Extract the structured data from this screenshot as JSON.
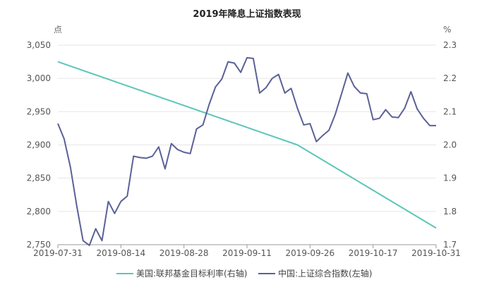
{
  "chart_data": {
    "type": "line",
    "title": "2019年降息上证指数表现",
    "left_axis": {
      "unit": "点",
      "ylim": [
        2750,
        3050
      ],
      "ticks": [
        "2,750",
        "2,800",
        "2,850",
        "2,900",
        "2,950",
        "3,000",
        "3,050"
      ],
      "tick_values": [
        2750,
        2800,
        2850,
        2900,
        2950,
        3000,
        3050
      ]
    },
    "right_axis": {
      "unit": "%",
      "ylim": [
        1.7,
        2.3
      ],
      "ticks": [
        "1.7",
        "1.8",
        "1.9",
        "2.0",
        "2.1",
        "2.2",
        "2.3"
      ],
      "tick_values": [
        1.7,
        1.8,
        1.9,
        2.0,
        2.1,
        2.2,
        2.3
      ]
    },
    "x_ticks": [
      "2019-07-31",
      "2019-08-14",
      "2019-08-28",
      "2019-09-11",
      "2019-09-26",
      "2019-10-17",
      "2019-10-31"
    ],
    "x_count": 66,
    "x_tick_index": [
      0,
      10,
      20,
      30,
      40,
      50,
      60
    ],
    "series": [
      {
        "name": "美国:联邦基金目标利率(右轴)",
        "axis": "right",
        "color": "#5cc6b8",
        "x": [
          0,
          38,
          60
        ],
        "values": [
          2.25,
          2.0,
          1.75
        ]
      },
      {
        "name": "中国:上证综合指数(左轴)",
        "axis": "left",
        "color": "#5b6196",
        "x": [
          0,
          1,
          2,
          3,
          4,
          5,
          6,
          7,
          8,
          9,
          10,
          11,
          12,
          13,
          14,
          15,
          16,
          17,
          18,
          19,
          20,
          21,
          22,
          23,
          24,
          25,
          26,
          27,
          28,
          29,
          30,
          31,
          32,
          33,
          34,
          35,
          36,
          37,
          38,
          39,
          40,
          41,
          42,
          43,
          44,
          45,
          46,
          47,
          48,
          49,
          50,
          51,
          52,
          53,
          54,
          55,
          56,
          57,
          58,
          59,
          60
        ],
        "values": [
          2932,
          2909,
          2866,
          2808,
          2756,
          2749,
          2774,
          2756,
          2815,
          2797,
          2815,
          2823,
          2883,
          2881,
          2880,
          2883,
          2897,
          2864,
          2902,
          2893,
          2889,
          2887,
          2924,
          2930,
          2961,
          2987,
          2999,
          3025,
          3023,
          3009,
          3031,
          3030,
          2978,
          2986,
          3000,
          3006,
          2978,
          2985,
          2955,
          2930,
          2932,
          2905,
          2914,
          2922,
          2946,
          2977,
          3008,
          2988,
          2978,
          2977,
          2938,
          2940,
          2953,
          2942,
          2941,
          2955,
          2980,
          2954,
          2940,
          2929,
          2929
        ]
      }
    ]
  }
}
